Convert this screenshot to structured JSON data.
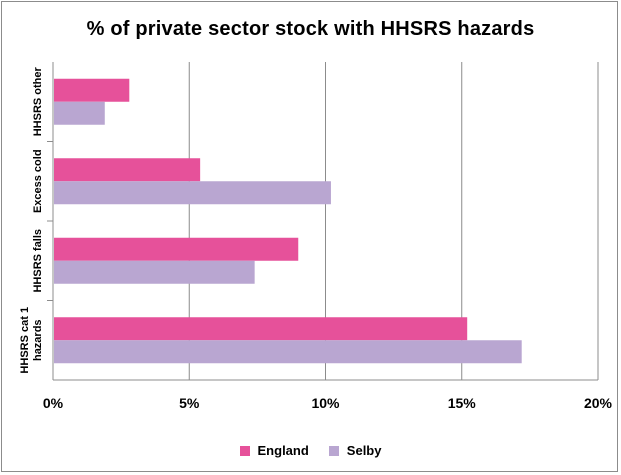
{
  "chart_data": {
    "type": "bar",
    "orientation": "horizontal",
    "title": "% of private sector stock with HHSRS hazards",
    "categories": [
      "HHSRS other",
      "Excess cold",
      "HHSRS falls",
      "HHSRS cat 1 hazards"
    ],
    "category_label_lines": [
      [
        "HHSRS other"
      ],
      [
        "Excess cold"
      ],
      [
        "HHSRS falls"
      ],
      [
        "HHSRS cat 1",
        "hazards"
      ]
    ],
    "series": [
      {
        "name": "England",
        "color": "#e6519a",
        "values": [
          2.8,
          5.4,
          9.0,
          15.2
        ]
      },
      {
        "name": "Selby",
        "color": "#b9a6d1",
        "values": [
          1.9,
          10.2,
          7.4,
          17.2
        ]
      }
    ],
    "xlim": [
      0,
      20
    ],
    "x_ticks": [
      "0%",
      "5%",
      "10%",
      "15%",
      "20%"
    ],
    "grid": true,
    "legend_position": "bottom"
  }
}
